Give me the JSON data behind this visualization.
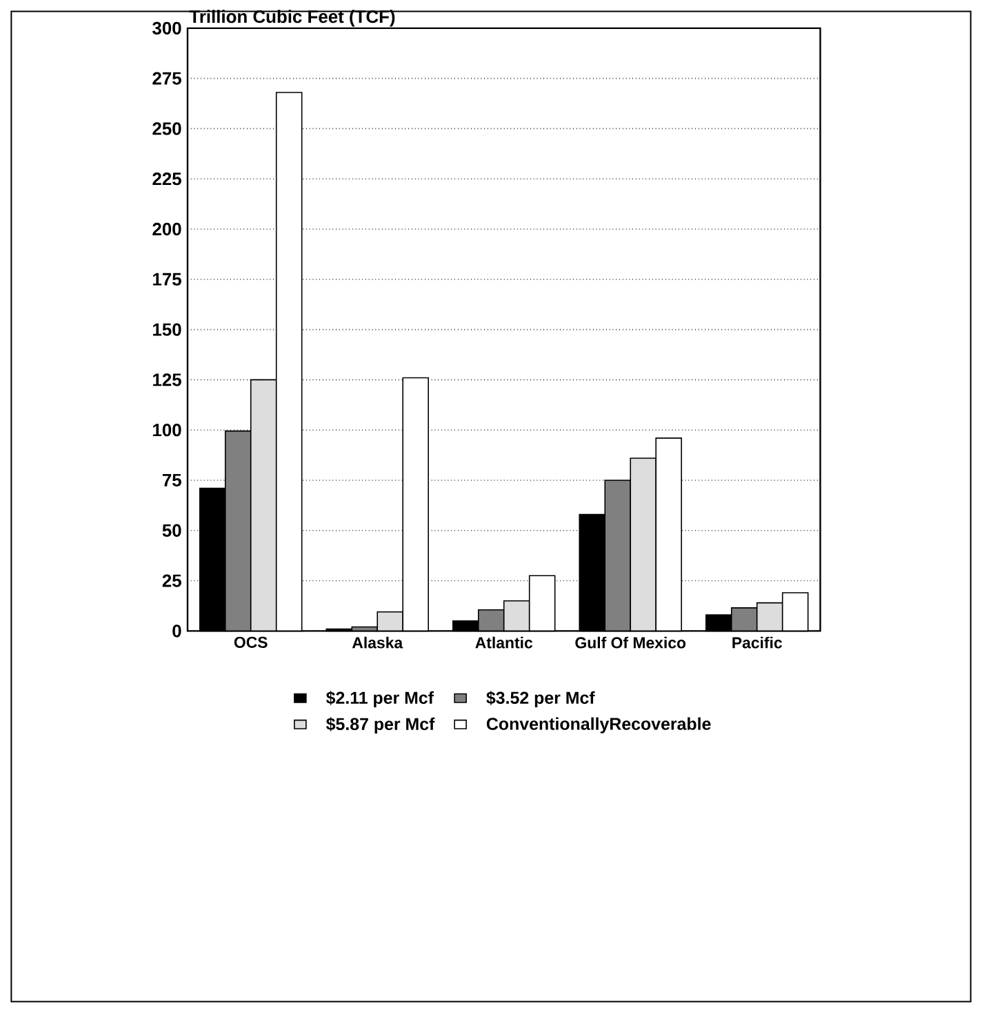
{
  "chart_data": {
    "type": "bar",
    "ylabel": "Trillion Cubic Feet (TCF)",
    "categories": [
      "OCS",
      "Alaska",
      "Atlantic",
      "Gulf Of Mexico",
      "Pacific"
    ],
    "series": [
      {
        "name": "$2.11 per Mcf",
        "color": "#000000",
        "values": [
          71,
          1,
          5,
          58,
          8
        ]
      },
      {
        "name": "$3.52 per Mcf",
        "color": "#808080",
        "values": [
          99.5,
          2,
          10.5,
          75,
          11.5
        ]
      },
      {
        "name": "$5.87 per Mcf",
        "color": "#dddddd",
        "values": [
          125,
          9.5,
          15,
          86,
          14
        ]
      },
      {
        "name": "ConventionallyRecoverable",
        "color": "#ffffff",
        "values": [
          268,
          126,
          27.5,
          96,
          19
        ]
      }
    ],
    "ylim": [
      0,
      300
    ],
    "yticks": [
      0,
      25,
      50,
      75,
      100,
      125,
      150,
      175,
      200,
      225,
      250,
      275,
      300
    ],
    "grid": "y",
    "legend": "bottom"
  }
}
